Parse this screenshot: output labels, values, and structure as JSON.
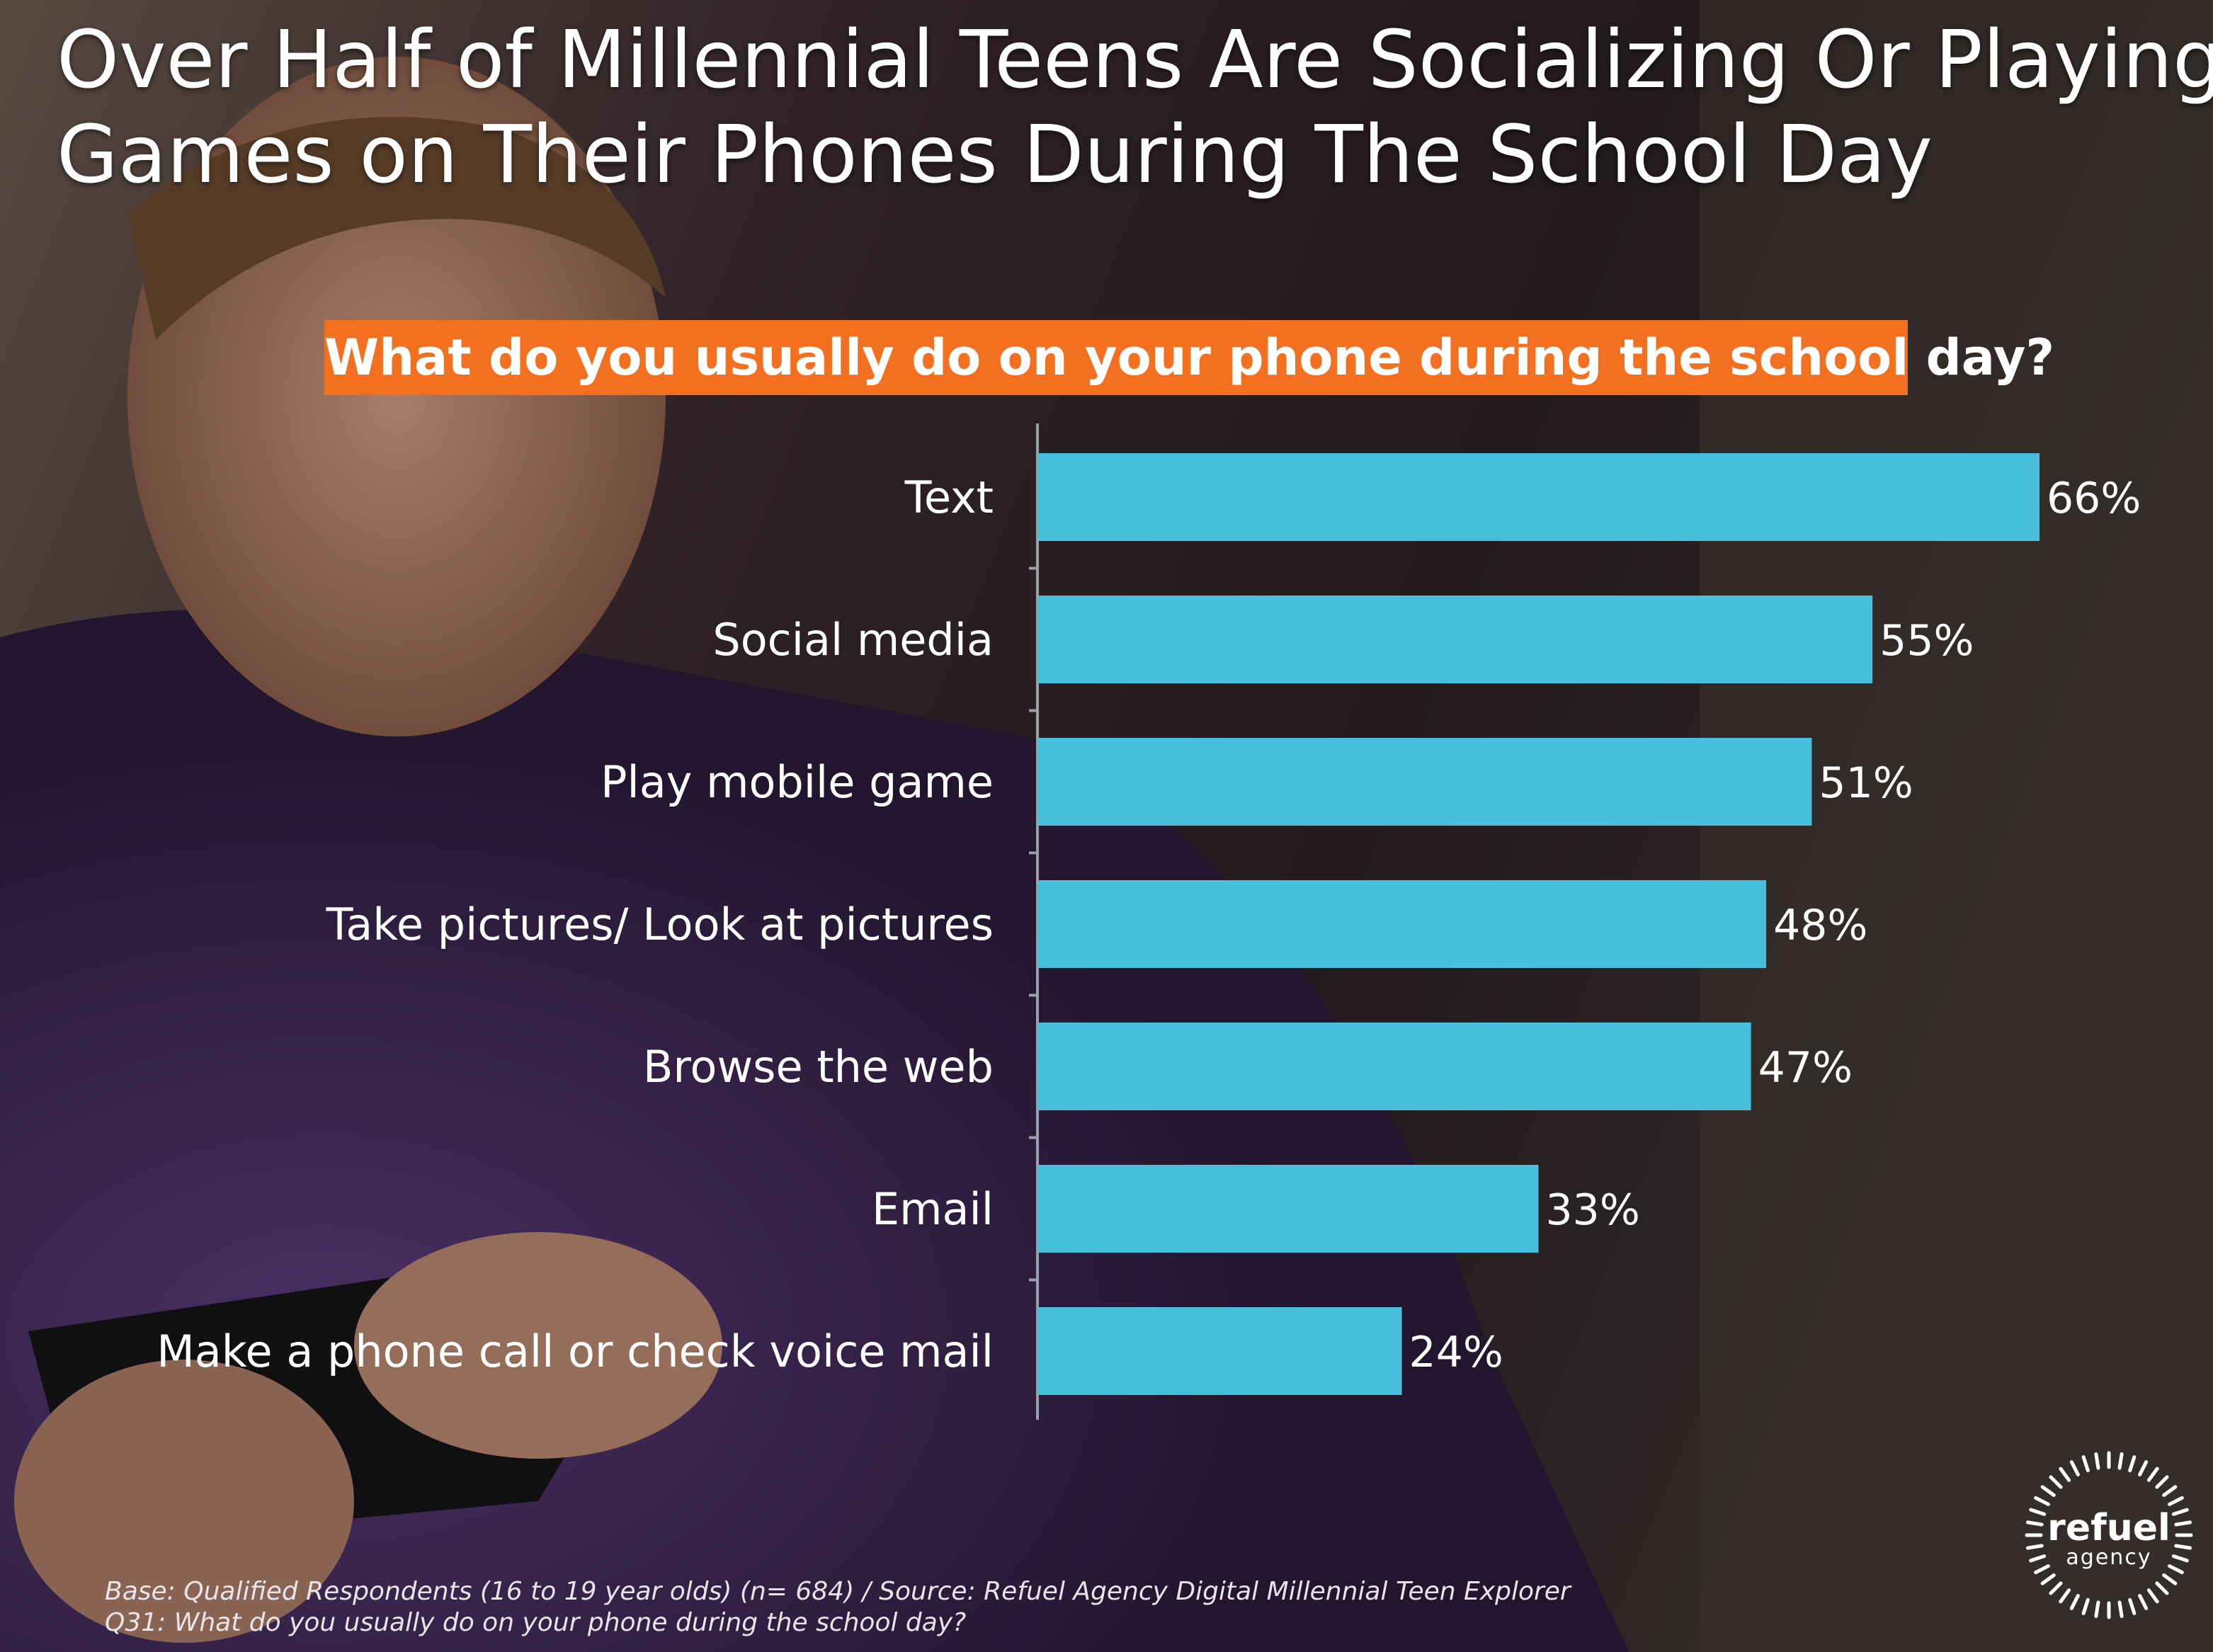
{
  "title": {
    "line1": "Over Half of Millennial Teens Are Socializing Or Playing",
    "line2": "Games on Their Phones During The School Day"
  },
  "question": "What do you usually do on your phone during the school day?",
  "footnote": {
    "line1": "Base: Qualified Respondents (16 to 19 year olds)  (n= 684) / Source: Refuel Agency Digital Millennial Teen Explorer",
    "line2": "Q31: What do you usually do on your phone during the school day?"
  },
  "logo": {
    "name": "refuel",
    "sub": "agency"
  },
  "colors": {
    "bar": "#48bfdd",
    "question_bg": "#f37021",
    "text": "#ffffff"
  },
  "chart_data": {
    "type": "bar",
    "orientation": "horizontal",
    "categories": [
      "Text",
      "Social media",
      "Play mobile game",
      "Take pictures/ Look at pictures",
      "Browse the web",
      "Email",
      "Make a phone call or check voice mail"
    ],
    "values": [
      66,
      55,
      51,
      48,
      47,
      33,
      24
    ],
    "value_labels": [
      "66%",
      "55%",
      "51%",
      "48%",
      "47%",
      "33%",
      "24%"
    ],
    "unit": "%",
    "xlim": [
      0,
      66
    ],
    "grid": false,
    "legend": "none"
  }
}
